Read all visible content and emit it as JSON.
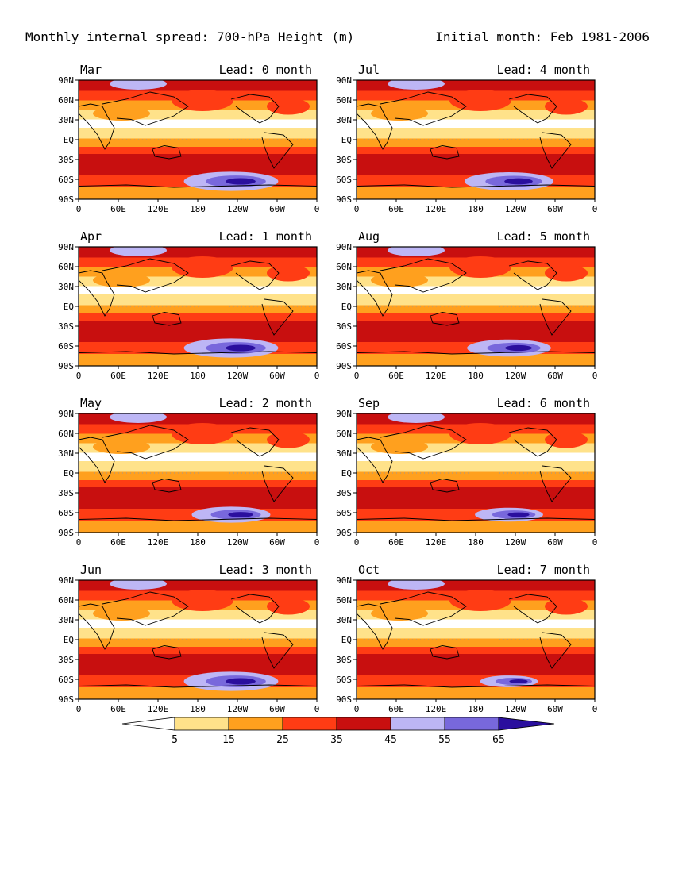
{
  "header": {
    "title": "Monthly internal spread: 700-hPa Height (m)",
    "initial": "Initial month: Feb 1981-2006"
  },
  "axes": {
    "lat_labels": [
      "90N",
      "60N",
      "30N",
      "EQ",
      "30S",
      "60S",
      "90S"
    ],
    "lon_labels": [
      "0",
      "60E",
      "120E",
      "180",
      "120W",
      "60W",
      "0"
    ]
  },
  "panels": [
    {
      "month": "Mar",
      "lead": "Lead: 0 month",
      "blue": 0.9
    },
    {
      "month": "Jul",
      "lead": "Lead: 4 month",
      "blue": 0.85
    },
    {
      "month": "Apr",
      "lead": "Lead: 1 month",
      "blue": 0.9
    },
    {
      "month": "Aug",
      "lead": "Lead: 5 month",
      "blue": 0.8
    },
    {
      "month": "May",
      "lead": "Lead: 2 month",
      "blue": 0.75
    },
    {
      "month": "Sep",
      "lead": "Lead: 6 month",
      "blue": 0.65
    },
    {
      "month": "Jun",
      "lead": "Lead: 3 month",
      "blue": 0.9
    },
    {
      "month": "Oct",
      "lead": "Lead: 7 month",
      "blue": 0.55
    }
  ],
  "colorbar": {
    "labels": [
      "5",
      "15",
      "25",
      "35",
      "45",
      "55",
      "65"
    ],
    "colors": [
      "#ffffff",
      "#ffe28a",
      "#ffa01e",
      "#ff3c14",
      "#c80f0f",
      "#bdb6f5",
      "#7868dc",
      "#2a0f9e"
    ]
  }
}
